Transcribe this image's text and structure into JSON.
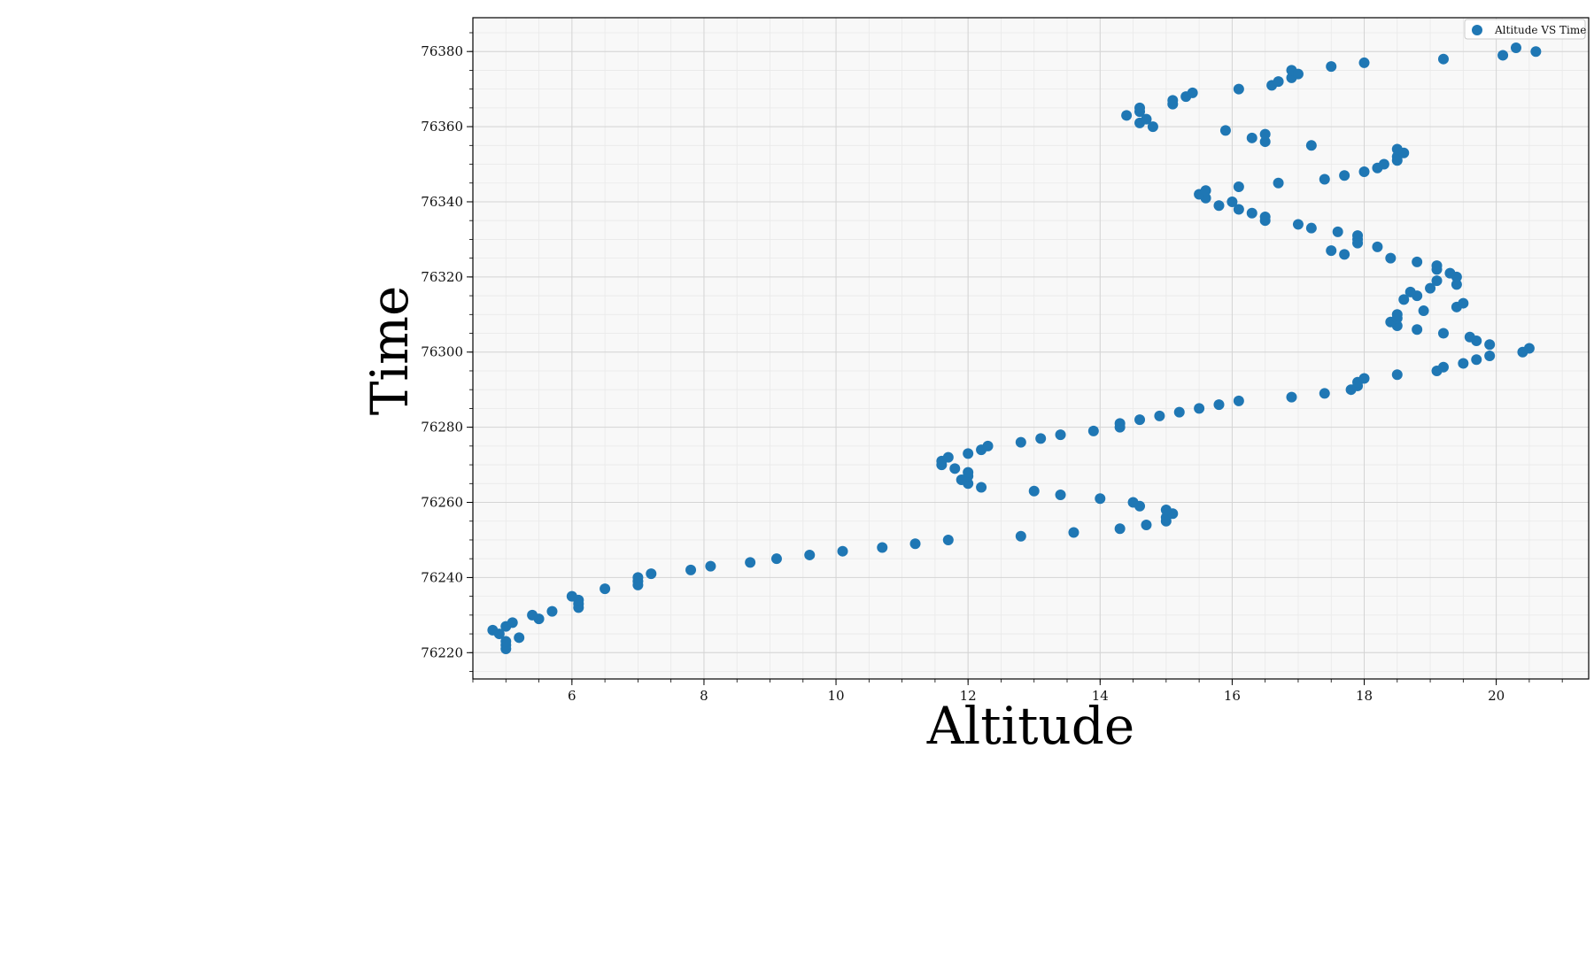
{
  "chart_data": {
    "type": "scatter",
    "xlabel": "Altitude",
    "ylabel": "Time",
    "xlim": [
      4.5,
      21.4
    ],
    "ylim": [
      76213,
      76389
    ],
    "xticks": [
      6,
      8,
      10,
      12,
      14,
      16,
      18,
      20
    ],
    "yticks": [
      76220,
      76240,
      76260,
      76280,
      76300,
      76320,
      76340,
      76360,
      76380
    ],
    "xtick_labels": [
      "6",
      "8",
      "10",
      "12",
      "14",
      "16",
      "18",
      "20"
    ],
    "ytick_labels": [
      "76220",
      "76240",
      "76260",
      "76280",
      "76300",
      "76320",
      "76340",
      "76360",
      "76380"
    ],
    "grid": true,
    "minor_grid": true,
    "legend_position": "top-right",
    "colors": {
      "series": "#1f77b4",
      "plot_background": "#f8f8f8",
      "major_grid": "#d4d4d4",
      "minor_grid": "#e9e9e9"
    },
    "series": [
      {
        "name": "Altitude VS Time",
        "x": [
          5.0,
          5.0,
          5.0,
          5.2,
          4.9,
          4.8,
          5.0,
          5.1,
          5.5,
          5.4,
          5.7,
          6.1,
          6.1,
          6.1,
          6.0,
          6.5,
          7.0,
          7.0,
          7.0,
          7.2,
          7.8,
          8.1,
          8.7,
          9.1,
          9.6,
          10.1,
          10.7,
          11.2,
          11.7,
          12.8,
          13.6,
          14.3,
          14.7,
          15.0,
          15.0,
          15.1,
          15.0,
          14.6,
          14.5,
          14.0,
          13.4,
          13.0,
          12.2,
          12.0,
          11.9,
          12.0,
          12.0,
          11.8,
          11.6,
          11.6,
          11.7,
          12.0,
          12.2,
          12.3,
          12.8,
          13.1,
          13.4,
          13.9,
          14.3,
          14.3,
          14.6,
          14.9,
          15.2,
          15.5,
          15.8,
          16.1,
          16.9,
          17.4,
          17.8,
          17.9,
          17.9,
          18.0,
          18.5,
          19.1,
          19.2,
          19.5,
          19.7,
          19.9,
          20.4,
          20.5,
          19.9,
          19.7,
          19.6,
          19.2,
          18.8,
          18.5,
          18.4,
          18.5,
          18.5,
          18.9,
          19.4,
          19.5,
          18.6,
          18.8,
          18.7,
          19.0,
          19.4,
          19.1,
          19.4,
          19.3,
          19.1,
          19.1,
          18.8,
          18.4,
          17.7,
          17.5,
          18.2,
          17.9,
          17.9,
          17.9,
          17.6,
          17.2,
          17.0,
          16.5,
          16.5,
          16.3,
          16.1,
          15.8,
          16.0,
          15.6,
          15.5,
          15.6,
          16.1,
          16.7,
          17.4,
          17.7,
          18.0,
          18.2,
          18.3,
          18.5,
          18.5,
          18.6,
          18.5,
          17.2,
          16.5,
          16.3,
          16.5,
          15.9,
          14.8,
          14.6,
          14.7,
          14.4,
          14.6,
          14.6,
          15.1,
          15.1,
          15.3,
          15.4,
          16.1,
          16.6,
          16.7,
          16.9,
          16.9,
          17.0,
          17.5,
          18.0,
          19.2,
          20.1,
          20.3,
          20.6
        ],
        "y": [
          76221,
          76222,
          76223,
          76224,
          76225,
          76226,
          76227,
          76228,
          76229,
          76230,
          76231,
          76232,
          76233,
          76234,
          76235,
          76237,
          76238,
          76239,
          76240,
          76241,
          76242,
          76243,
          76244,
          76245,
          76246,
          76247,
          76248,
          76249,
          76250,
          76251,
          76252,
          76253,
          76254,
          76255,
          76256,
          76257,
          76258,
          76259,
          76260,
          76261,
          76262,
          76263,
          76264,
          76265,
          76266,
          76267,
          76268,
          76269,
          76270,
          76271,
          76272,
          76273,
          76274,
          76275,
          76276,
          76277,
          76278,
          76279,
          76280,
          76281,
          76282,
          76283,
          76284,
          76285,
          76286,
          76287,
          76288,
          76289,
          76290,
          76291,
          76292,
          76293,
          76294,
          76295,
          76296,
          76297,
          76298,
          76299,
          76300,
          76301,
          76302,
          76303,
          76304,
          76305,
          76306,
          76307,
          76308,
          76309,
          76310,
          76311,
          76312,
          76313,
          76314,
          76315,
          76316,
          76317,
          76318,
          76319,
          76320,
          76321,
          76322,
          76323,
          76324,
          76325,
          76326,
          76327,
          76328,
          76329,
          76330,
          76331,
          76332,
          76333,
          76334,
          76335,
          76336,
          76337,
          76338,
          76339,
          76340,
          76341,
          76342,
          76343,
          76344,
          76345,
          76346,
          76347,
          76348,
          76349,
          76350,
          76351,
          76352,
          76353,
          76354,
          76355,
          76356,
          76357,
          76358,
          76359,
          76360,
          76361,
          76362,
          76363,
          76364,
          76365,
          76366,
          76367,
          76368,
          76369,
          76370,
          76371,
          76372,
          76373,
          76375,
          76374,
          76376,
          76377,
          76378,
          76379,
          76381,
          76380
        ]
      }
    ]
  }
}
